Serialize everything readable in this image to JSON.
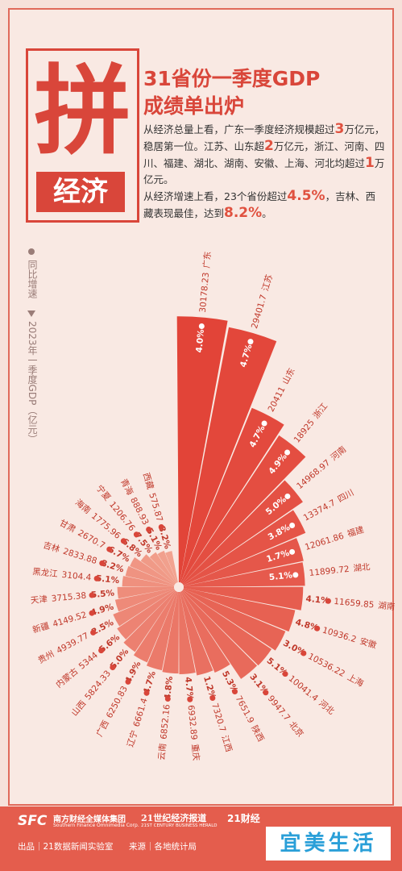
{
  "header": {
    "badge_char": "拼",
    "badge_sub": "经济",
    "title_line1": "31省份一季度GDP",
    "title_line2": "成绩单出炉",
    "intro": [
      [
        "从经济总量上看，广东一季度经济规模超过",
        "3",
        "万亿元，稳居第一位。江苏、山东超",
        "2",
        "万亿元，浙江、河南、四川、福建、湖北、湖南、安徽、上海、河北均超过",
        "1",
        "万亿元。"
      ],
      [
        "从经济增速上看，23个省份超过",
        "4.5%",
        "，吉林、西藏表现最佳，达到",
        "8.2%",
        "。"
      ]
    ]
  },
  "chart_data": {
    "type": "rose",
    "categories": [
      "广东",
      "江苏",
      "山东",
      "浙江",
      "河南",
      "四川",
      "福建",
      "湖北",
      "湖南",
      "安徽",
      "上海",
      "河北",
      "北京",
      "陕西",
      "江西",
      "重庆",
      "云南",
      "辽宁",
      "广西",
      "山西",
      "内蒙古",
      "贵州",
      "新疆",
      "天津",
      "黑龙江",
      "吉林",
      "甘肃",
      "海南",
      "宁夏",
      "青海",
      "西藏"
    ],
    "series": [
      {
        "name": "2023年一季度GDP（亿元）",
        "values": [
          30178.23,
          29401.7,
          20411,
          18925,
          14968.97,
          13374.7,
          12061.86,
          11899.72,
          11659.85,
          10936.2,
          10536.22,
          10041.4,
          9947.7,
          7651.9,
          7320.7,
          6932.89,
          6852.16,
          6661.4,
          6250.83,
          5824.33,
          5344,
          4939.77,
          4149.52,
          3715.38,
          3104.4,
          2833.88,
          2670.7,
          1775.96,
          1206.76,
          888.93,
          575.87
        ]
      },
      {
        "name": "同比增速",
        "values": [
          4.0,
          4.7,
          4.7,
          4.9,
          5.0,
          3.8,
          1.7,
          5.1,
          4.1,
          4.8,
          3.0,
          5.1,
          3.1,
          5.3,
          1.2,
          4.7,
          4.8,
          4.7,
          4.9,
          5.0,
          5.6,
          2.5,
          4.9,
          5.5,
          5.1,
          8.2,
          6.7,
          6.8,
          7.5,
          5.1,
          8.2
        ],
        "value_labels": [
          "4.0%",
          "4.7%",
          "4.7%",
          "4.9%",
          "5.0%",
          "3.8%",
          "1.7%",
          "5.1%",
          "4.1%",
          "4.8%",
          "3.0%",
          "5.1%",
          "3.1%",
          "5.3%",
          "1.2%",
          "4.7%",
          "4.8%",
          "4.7%",
          "4.9%",
          "5.0%",
          "5.6%",
          "2.5%",
          "4.9%",
          "5.5%",
          "5.1%",
          "8.2%",
          "6.7%",
          "6.8%",
          "7.5%",
          "5.1%",
          "8.2%"
        ]
      }
    ]
  },
  "footer": {
    "org1": "南方财经全媒体集团",
    "org1_en": "Southern Finance Omnimedia Corp.",
    "org1_logo": "SFC",
    "org2": "21世纪经济报道",
    "org2_en": "21ST CENTURY BUSINESS HERALD",
    "org3": "21财经",
    "credit": "出品｜21数据新闻实验室",
    "source": "来源｜各地统计局",
    "watermark": "宜美生活"
  }
}
